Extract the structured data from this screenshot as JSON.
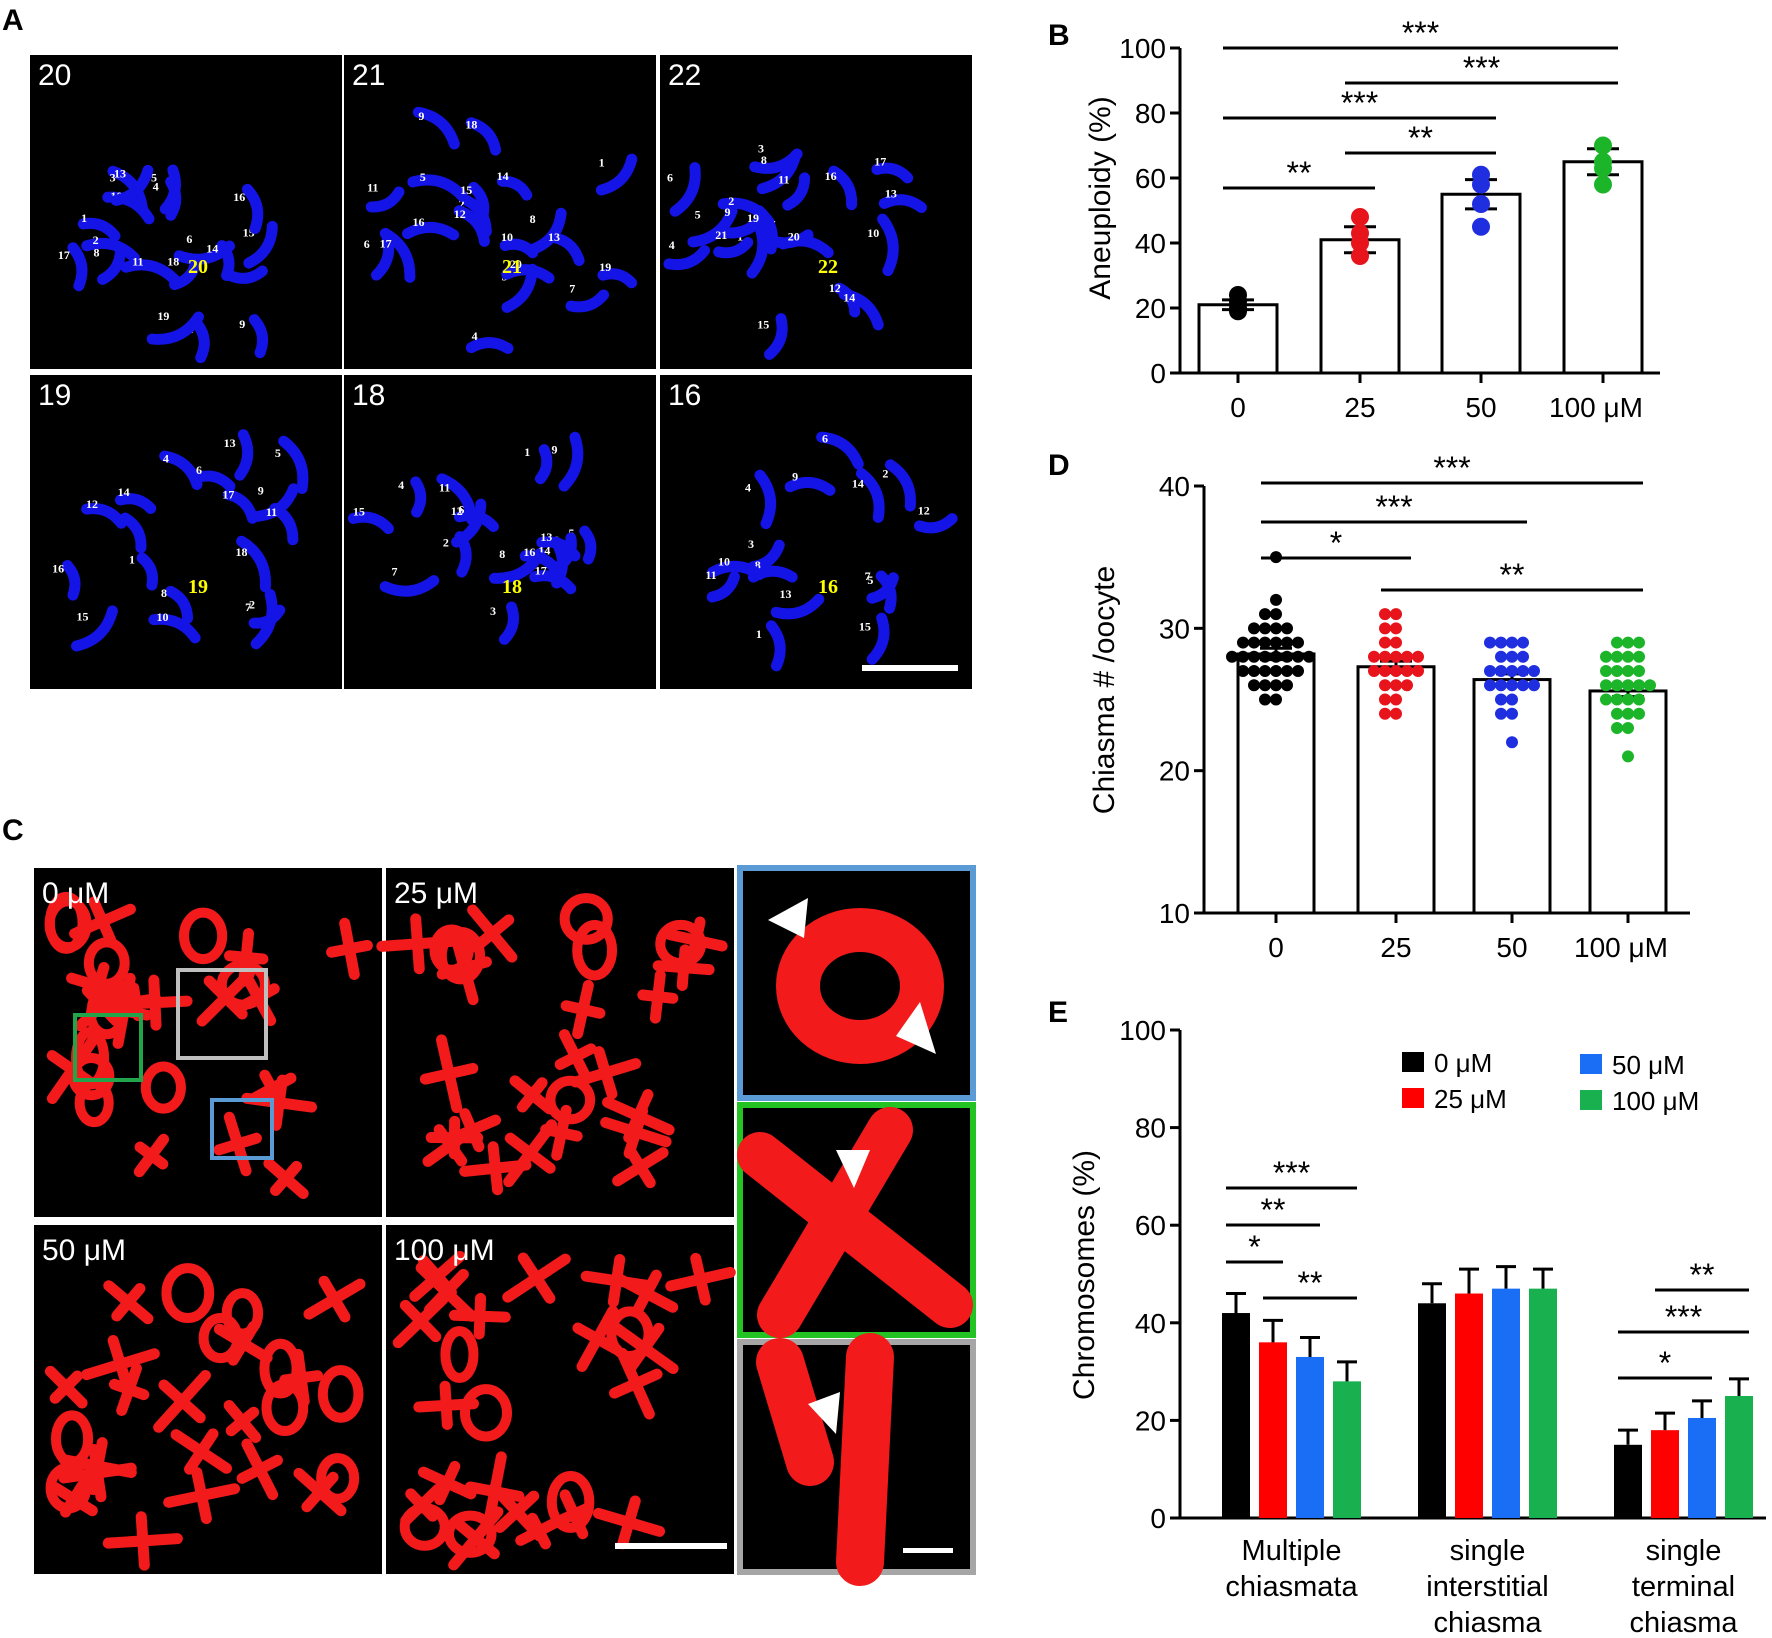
{
  "panels": {
    "A": {
      "letter": "A",
      "images": [
        {
          "count": "20",
          "total": "20",
          "numbers": [
            "1",
            "2",
            "3",
            "4",
            "5",
            "6",
            "7",
            "8",
            "9",
            "10",
            "11",
            "12",
            "13",
            "14",
            "15",
            "16",
            "17",
            "18",
            "19"
          ]
        },
        {
          "count": "21",
          "total": "21",
          "numbers": [
            "1",
            "2",
            "3",
            "4",
            "5",
            "6",
            "7",
            "8",
            "9",
            "10",
            "11",
            "12",
            "13",
            "14",
            "15",
            "16",
            "17",
            "18",
            "19",
            "20"
          ]
        },
        {
          "count": "22",
          "total": "22",
          "numbers": [
            "1",
            "2",
            "3",
            "4",
            "5",
            "6",
            "7",
            "8",
            "9",
            "10",
            "11",
            "12",
            "13",
            "14",
            "15",
            "16",
            "17",
            "19",
            "20",
            "21"
          ]
        },
        {
          "count": "19",
          "total": "19",
          "numbers": [
            "1",
            "2",
            "3",
            "4",
            "5",
            "6",
            "7",
            "8",
            "9",
            "10",
            "11",
            "12",
            "13",
            "14",
            "15",
            "16",
            "17",
            "18"
          ]
        },
        {
          "count": "18",
          "total": "18",
          "numbers": [
            "1",
            "2",
            "3",
            "4",
            "5",
            "6",
            "7",
            "8",
            "9",
            "10",
            "11",
            "12",
            "13",
            "14",
            "15",
            "16",
            "17"
          ]
        },
        {
          "count": "16",
          "total": "16",
          "numbers": [
            "1",
            "2",
            "3",
            "4",
            "5",
            "6",
            "7",
            "8",
            "9",
            "10",
            "11",
            "12",
            "13",
            "14",
            "15"
          ]
        }
      ]
    },
    "C": {
      "letter": "C",
      "images": [
        {
          "label": "0 μM"
        },
        {
          "label": "25 μM"
        },
        {
          "label": "50 μM"
        },
        {
          "label": "100 μM"
        }
      ],
      "inset_colors": [
        "#5b9bd5",
        "#22c322",
        "#a6a6a6"
      ]
    }
  },
  "chart_data": [
    {
      "panel": "B",
      "type": "bar",
      "categories": [
        "0",
        "25",
        "50",
        "100 μM"
      ],
      "values": [
        21,
        41,
        55,
        65
      ],
      "errors": [
        1.5,
        4,
        4.5,
        4
      ],
      "points": [
        [
          19,
          20,
          22,
          24
        ],
        [
          36,
          40,
          43,
          48
        ],
        [
          45,
          52,
          58,
          61
        ],
        [
          58,
          63,
          65,
          70
        ]
      ],
      "point_colors": [
        "#000000",
        "#e8141c",
        "#1f2fe0",
        "#1cb52a"
      ],
      "ylabel": "Aneuploidy (%)",
      "ylim": [
        0,
        100
      ],
      "yticks": [
        "0",
        "20",
        "40",
        "60",
        "80",
        "100"
      ],
      "significance": [
        {
          "from": 0,
          "to": 3,
          "label": "***"
        },
        {
          "from": 1,
          "to": 3,
          "label": "***"
        },
        {
          "from": 0,
          "to": 2,
          "label": "***"
        },
        {
          "from": 1,
          "to": 2,
          "label": "**"
        },
        {
          "from": 0,
          "to": 1,
          "label": "**"
        }
      ]
    },
    {
      "panel": "D",
      "type": "bar",
      "categories": [
        "0",
        "25",
        "50",
        "100 μM"
      ],
      "values": [
        28.2,
        27.3,
        26.4,
        25.6
      ],
      "errors": [
        0.4,
        0.4,
        0.4,
        0.4
      ],
      "points": [
        [
          35,
          32,
          31,
          31,
          30,
          30,
          30,
          30,
          29,
          29,
          29,
          29,
          29,
          29,
          28,
          28,
          28,
          28,
          28,
          28,
          28,
          28,
          27,
          27,
          27,
          27,
          27,
          27,
          26,
          26,
          26,
          26,
          25,
          25
        ],
        [
          31,
          31,
          30,
          30,
          29,
          29,
          28,
          28,
          28,
          28,
          28,
          27,
          27,
          27,
          27,
          27,
          26,
          26,
          26,
          25,
          25,
          24,
          24
        ],
        [
          29,
          29,
          29,
          29,
          28,
          28,
          28,
          27,
          27,
          27,
          27,
          27,
          26,
          26,
          26,
          26,
          26,
          25,
          25,
          24,
          24,
          22
        ],
        [
          29,
          29,
          29,
          28,
          28,
          28,
          28,
          27,
          27,
          27,
          27,
          26,
          26,
          26,
          26,
          26,
          25,
          25,
          25,
          25,
          24,
          24,
          24,
          23,
          23,
          21
        ]
      ],
      "point_colors": [
        "#000000",
        "#e8141c",
        "#1f2fe0",
        "#1cb52a"
      ],
      "ylabel": "Chiasma # /oocyte",
      "ylim": [
        10,
        40
      ],
      "yticks": [
        "10",
        "20",
        "30",
        "40"
      ],
      "significance": [
        {
          "from": 0,
          "to": 3,
          "label": "***"
        },
        {
          "from": 0,
          "to": 2,
          "label": "***"
        },
        {
          "from": 0,
          "to": 1,
          "label": "*"
        },
        {
          "from": 1,
          "to": 3,
          "label": "**"
        }
      ]
    },
    {
      "panel": "E",
      "type": "bar",
      "categories": [
        "Multiple chiasmata",
        "single interstitial chiasma",
        "single terminal chiasma"
      ],
      "category_lines": [
        [
          "Multiple",
          "chiasmata"
        ],
        [
          "single",
          "interstitial",
          "chiasma"
        ],
        [
          "single",
          "terminal",
          "chiasma"
        ]
      ],
      "series": [
        {
          "name": "0 μM",
          "color": "#000000",
          "values": [
            42,
            44,
            15
          ],
          "errors": [
            4,
            4,
            3
          ]
        },
        {
          "name": "25 μM",
          "color": "#ff0000",
          "values": [
            36,
            46,
            18
          ],
          "errors": [
            4.5,
            5,
            3.5
          ]
        },
        {
          "name": "50 μM",
          "color": "#1a6ef5",
          "values": [
            33,
            47,
            20.5
          ],
          "errors": [
            4,
            4.5,
            3.5
          ]
        },
        {
          "name": "100 μM",
          "color": "#19b050",
          "values": [
            28,
            47,
            25
          ],
          "errors": [
            4,
            4,
            3.5
          ]
        }
      ],
      "ylabel": "Chromosomes (%)",
      "ylim": [
        0,
        100
      ],
      "yticks": [
        "0",
        "20",
        "40",
        "60",
        "80",
        "100"
      ],
      "significance": [
        {
          "group": 0,
          "from": 0,
          "to": 3,
          "label": "***"
        },
        {
          "group": 0,
          "from": 0,
          "to": 2,
          "label": "**"
        },
        {
          "group": 0,
          "from": 0,
          "to": 1,
          "label": "*"
        },
        {
          "group": 0,
          "from": 1,
          "to": 3,
          "label": "**"
        },
        {
          "group": 2,
          "from": 1,
          "to": 3,
          "label": "**"
        },
        {
          "group": 2,
          "from": 0,
          "to": 3,
          "label": "***"
        },
        {
          "group": 2,
          "from": 0,
          "to": 2,
          "label": "*"
        }
      ]
    }
  ]
}
